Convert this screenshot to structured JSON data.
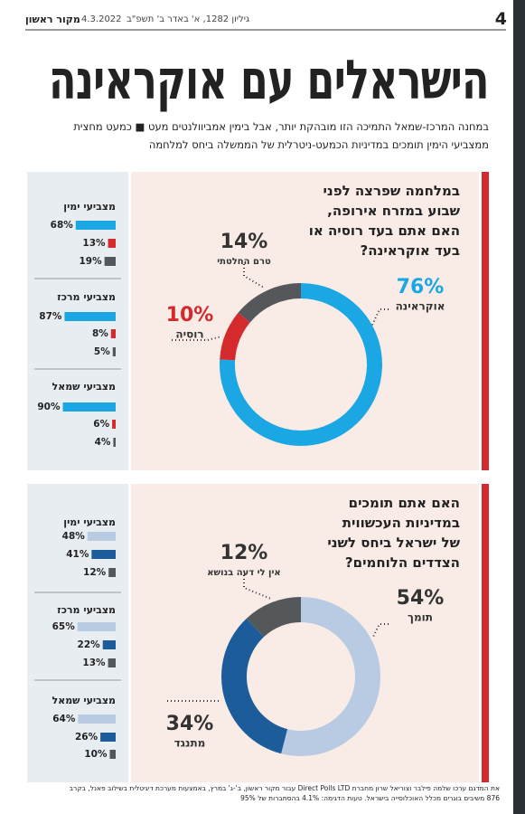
{
  "header": {
    "page_number": "4",
    "masthead": "מקור ראשון",
    "date": "4.3.2022",
    "issue": "גיליון 1282, א' באדר ב' תשפ\"ב",
    "title": "הישראלים עם אוקראינה",
    "subtitle": [
      "במחנה המרכז-שמאל התמיכה הזו מובהקת יותר, אבל בימין אמביוולנטים מעט ■ כמעט מחצית",
      "ממצביעי הימין תומכים במדיניות הכמעט-ניטרלית של הממשלה ביחס למלחמה"
    ]
  },
  "chart_data": [
    {
      "type": "donut",
      "question": [
        "במלחמה שפרצה לפני",
        "שבוע במזרח אירופה,",
        "האם אתם בעד רוסיה או",
        "בעד אוקראינה?"
      ],
      "categories": [
        "אוקראינה",
        "רוסיה",
        "טרם החלטתי"
      ],
      "values": [
        76,
        10,
        14
      ],
      "value_labels": [
        "76%",
        "10%",
        "14%"
      ],
      "colors": [
        "#1ba6e4",
        "#d42a2e",
        "#55585b"
      ],
      "groups": [
        {
          "name": "מצביעי ימין",
          "values": [
            68,
            13,
            19
          ],
          "value_labels": [
            "68%",
            "13%",
            "19%"
          ]
        },
        {
          "name": "מצביעי מרכז",
          "values": [
            87,
            8,
            5
          ],
          "value_labels": [
            "87%",
            "8%",
            "5%"
          ]
        },
        {
          "name": "מצביעי שמאל",
          "values": [
            90,
            6,
            4
          ],
          "value_labels": [
            "90%",
            "6%",
            "4%"
          ]
        }
      ]
    },
    {
      "type": "donut",
      "question": [
        "האם אתם תומכים",
        "במדיניות העכשווית",
        "של ישראל ביחס לשני",
        "הצדדים הלוחמים?"
      ],
      "categories": [
        "תומך",
        "מתנגד",
        "אין לי דעה בנושא"
      ],
      "values": [
        54,
        34,
        12
      ],
      "value_labels": [
        "54%",
        "34%",
        "12%"
      ],
      "colors": [
        "#b8cbe3",
        "#1d5c9b",
        "#55585b"
      ],
      "groups": [
        {
          "name": "מצביעי ימין",
          "values": [
            48,
            41,
            12
          ],
          "value_labels": [
            "48%",
            "41%",
            "12%"
          ]
        },
        {
          "name": "מצביעי מרכז",
          "values": [
            65,
            22,
            13
          ],
          "value_labels": [
            "65%",
            "22%",
            "13%"
          ]
        },
        {
          "name": "מצביעי שמאל",
          "values": [
            64,
            26,
            10
          ],
          "value_labels": [
            "64%",
            "26%",
            "10%"
          ]
        }
      ]
    }
  ],
  "footer": [
    "את המדגם ערכו שלמה פילבר וצוריאל שרון מחברת Direct Polls LTD עבור מקור ראשון, ב'-ג' במרץ, באמצעות מערכת דיגיטלית בשילוב פאנל, בקרב",
    "876 משיבים בוגרים מכלל האוכלוסייה בישראל. טעות הדגימה: 4.1% בהסתברות של 95%"
  ]
}
